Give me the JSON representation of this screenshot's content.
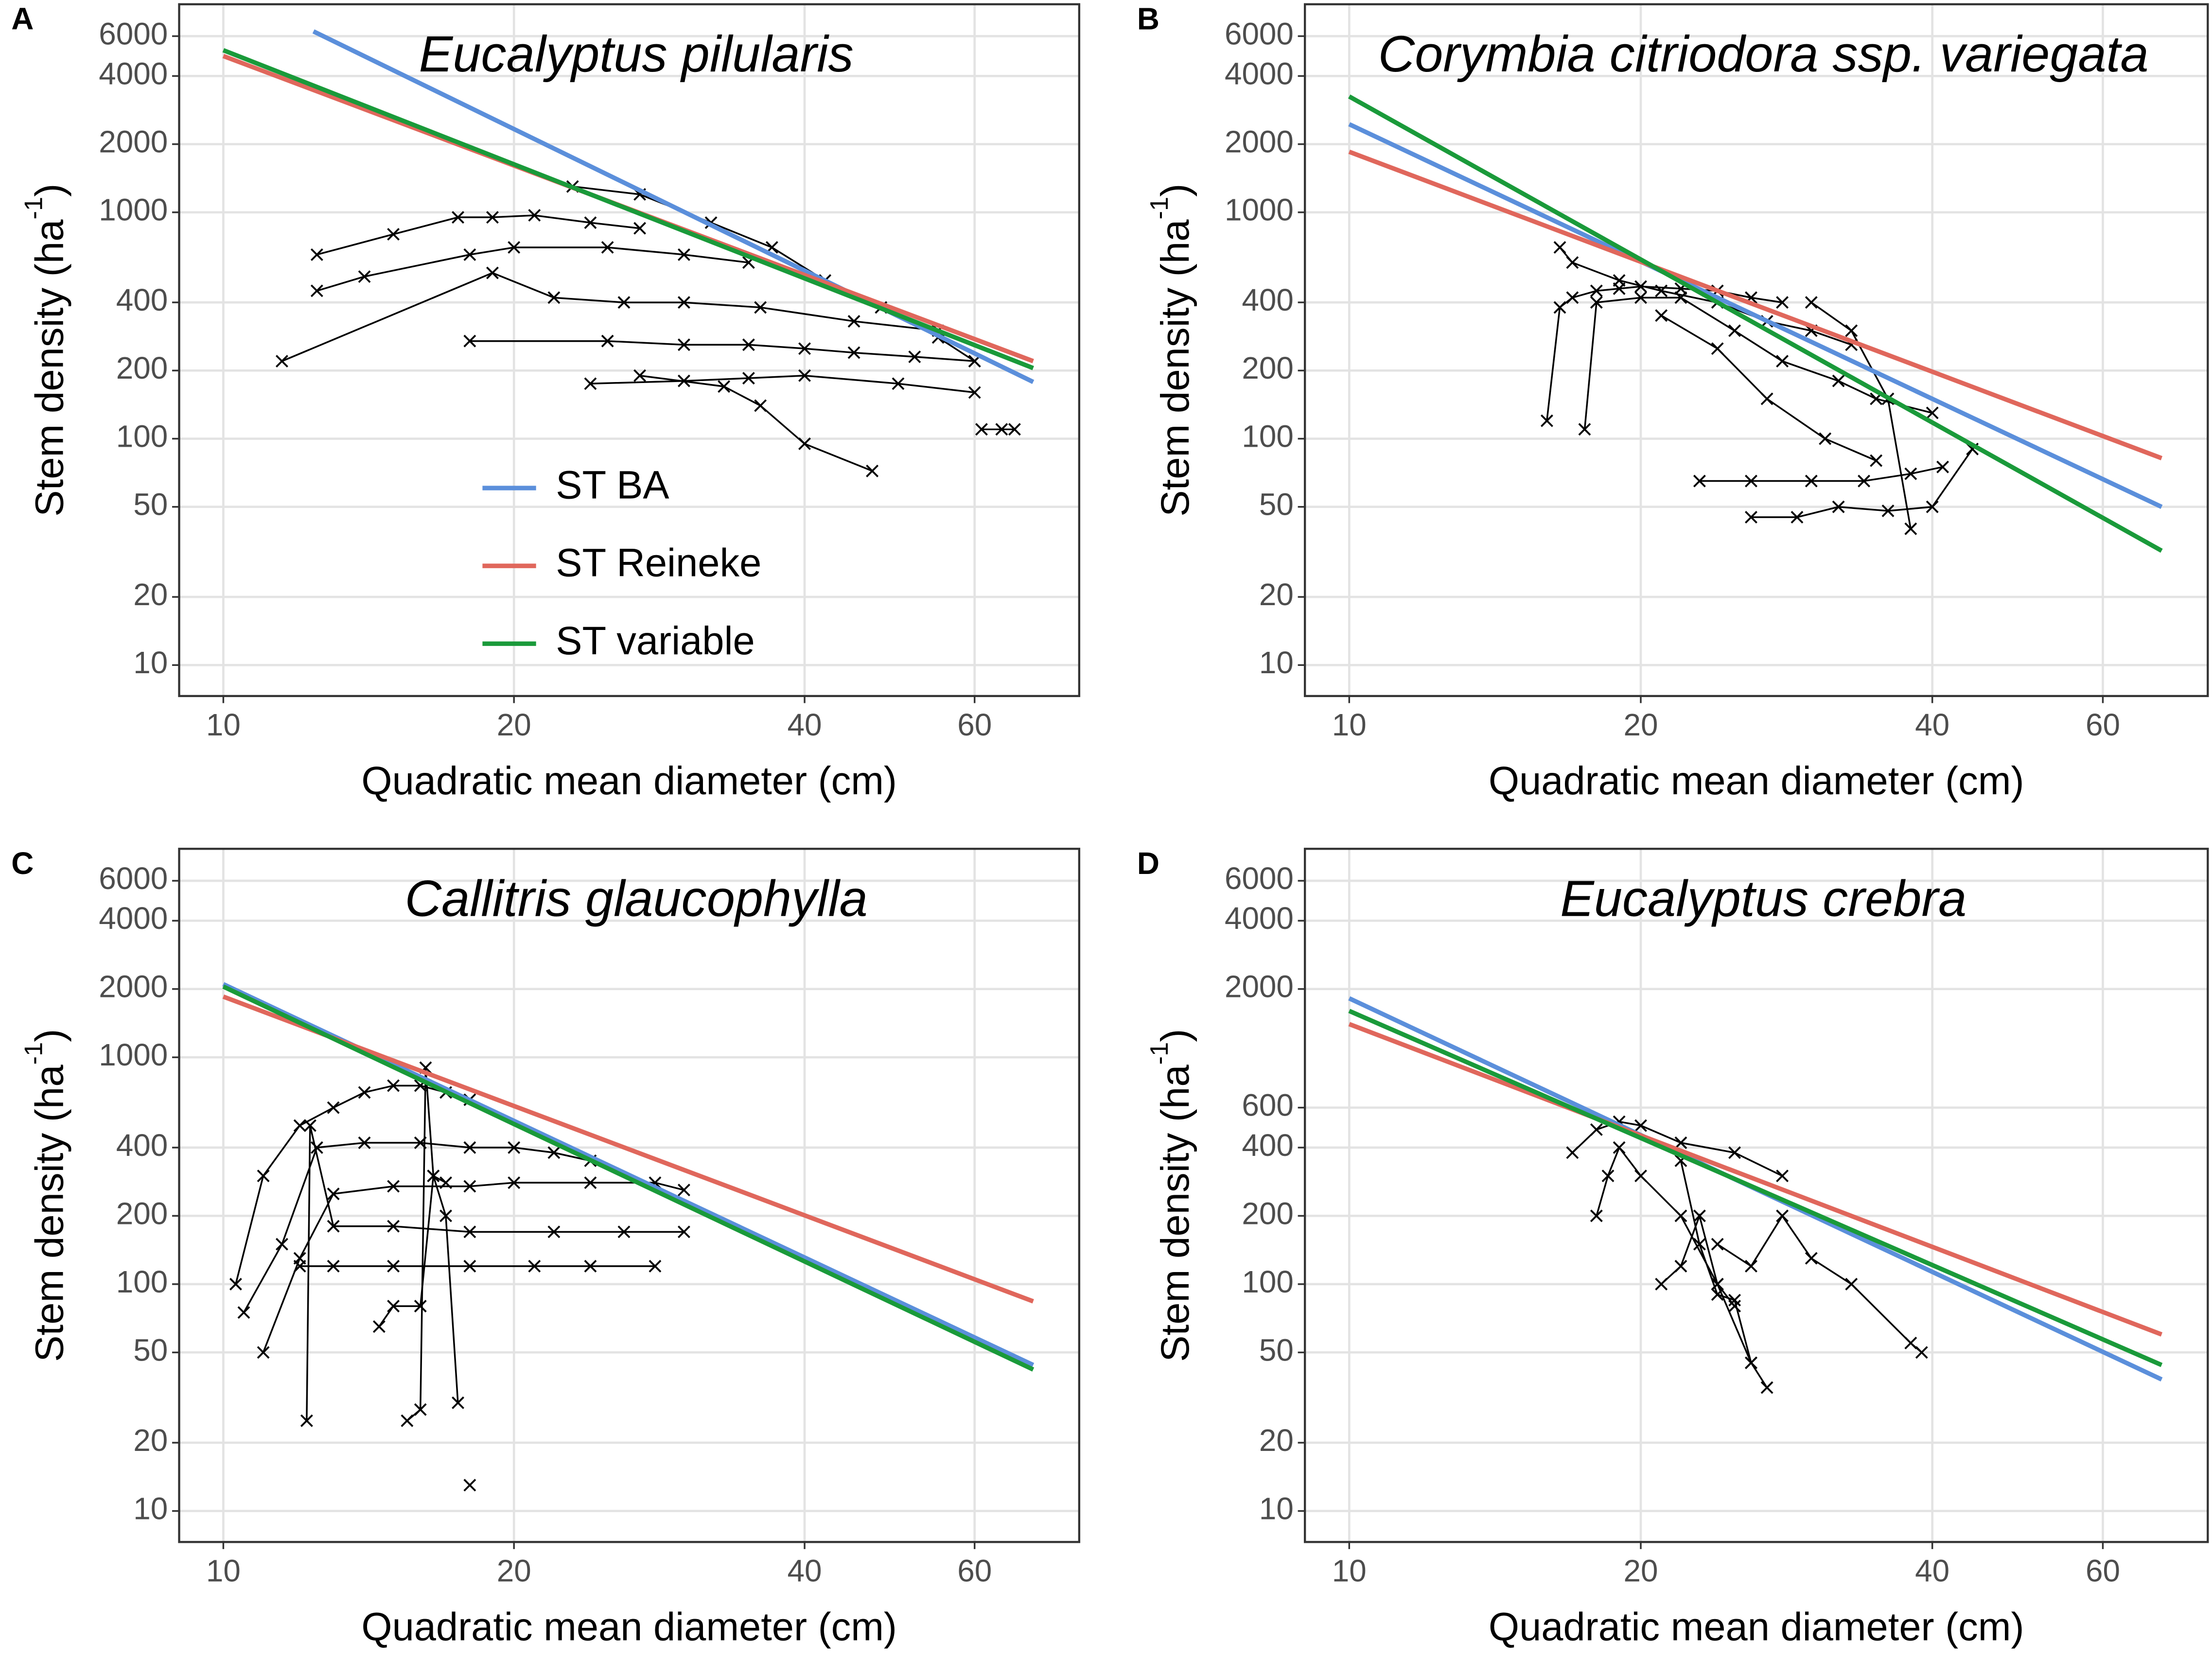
{
  "chart_data": [
    {
      "type": "line",
      "panel_label": "A",
      "title": "Eucalyptus pilularis",
      "xlabel": "Quadratic mean diameter (cm)",
      "ylabel": {
        "text": "Stem density (ha",
        "sup": "-1",
        "close": ")"
      },
      "log_x": true,
      "log_y": true,
      "grid": true,
      "legend": "center-left",
      "xlim": [
        9,
        77
      ],
      "ylim": [
        7.3,
        8300
      ],
      "xticks": [
        10,
        20,
        40,
        60
      ],
      "yticks": [
        10,
        20,
        50,
        100,
        200,
        400,
        1000,
        2000,
        4000,
        6000
      ],
      "series": [
        {
          "name": "ST BA",
          "color": "#5b8fdb",
          "x": [
            12.4,
            69
          ],
          "values": [
            6300,
            178
          ]
        },
        {
          "name": "ST Reineke",
          "color": "#e0675c",
          "x": [
            10,
            69
          ],
          "values": [
            4900,
            220
          ]
        },
        {
          "name": "ST variable",
          "color": "#1a9a3a",
          "x": [
            10,
            69
          ],
          "values": [
            5200,
            205
          ]
        }
      ],
      "observed": [
        {
          "x": [
            12.5,
            15,
            17.5,
            19,
            21,
            24,
            27
          ],
          "values": [
            650,
            800,
            950,
            950,
            970,
            900,
            850
          ]
        },
        {
          "x": [
            12.5,
            14,
            18,
            20,
            25,
            30,
            35
          ],
          "values": [
            450,
            520,
            650,
            700,
            700,
            650,
            600
          ]
        },
        {
          "x": [
            11.5,
            19,
            22,
            26,
            30,
            36,
            45,
            55
          ],
          "values": [
            220,
            540,
            420,
            400,
            400,
            380,
            330,
            300
          ]
        },
        {
          "x": [
            18,
            25,
            30,
            35,
            40,
            45,
            52,
            60
          ],
          "values": [
            270,
            270,
            260,
            260,
            250,
            240,
            230,
            220
          ]
        },
        {
          "x": [
            24,
            30,
            35,
            40,
            50,
            60
          ],
          "values": [
            175,
            180,
            185,
            190,
            175,
            160
          ]
        },
        {
          "x": [
            27,
            33,
            36,
            40,
            47
          ],
          "values": [
            190,
            170,
            140,
            95,
            72
          ]
        },
        {
          "x": [
            23,
            27,
            32,
            37,
            42,
            48,
            55,
            60
          ],
          "values": [
            1300,
            1200,
            900,
            700,
            500,
            380,
            280,
            220
          ]
        },
        {
          "x": [
            61,
            64,
            66
          ],
          "values": [
            110,
            110,
            110
          ]
        }
      ]
    },
    {
      "type": "line",
      "panel_label": "B",
      "title": "Corymbia citriodora ssp. variegata",
      "xlabel": "Quadratic mean diameter (cm)",
      "ylabel": {
        "text": "Stem density (ha",
        "sup": "-1",
        "close": ")"
      },
      "log_x": true,
      "log_y": true,
      "grid": true,
      "xlim": [
        9,
        77
      ],
      "ylim": [
        7.3,
        8300
      ],
      "xticks": [
        10,
        20,
        40,
        60
      ],
      "yticks": [
        10,
        20,
        50,
        100,
        200,
        400,
        1000,
        2000,
        4000,
        6000
      ],
      "series": [
        {
          "color": "#5b8fdb",
          "x": [
            10,
            69
          ],
          "values": [
            2450,
            50
          ]
        },
        {
          "color": "#e0675c",
          "x": [
            10,
            69
          ],
          "values": [
            1850,
            82
          ]
        },
        {
          "color": "#1a9a3a",
          "x": [
            10,
            69
          ],
          "values": [
            3250,
            32
          ]
        }
      ],
      "observed": [
        {
          "x": [
            16,
            16.5,
            17,
            18,
            19,
            20,
            22,
            24,
            26,
            28
          ],
          "values": [
            120,
            380,
            420,
            450,
            460,
            470,
            460,
            450,
            420,
            400
          ]
        },
        {
          "x": [
            17.5,
            18,
            20,
            22,
            25,
            28,
            32,
            35,
            40
          ],
          "values": [
            110,
            400,
            420,
            420,
            300,
            220,
            180,
            150,
            130
          ]
        },
        {
          "x": [
            16.5,
            17,
            19,
            21,
            24,
            27,
            30,
            33
          ],
          "values": [
            700,
            600,
            500,
            450,
            400,
            330,
            300,
            260
          ]
        },
        {
          "x": [
            23,
            26,
            30,
            34,
            38,
            41
          ],
          "values": [
            65,
            65,
            65,
            65,
            70,
            75
          ]
        },
        {
          "x": [
            26,
            29,
            32,
            36,
            40,
            44
          ],
          "values": [
            45,
            45,
            50,
            48,
            50,
            90
          ]
        },
        {
          "x": [
            21,
            24,
            27,
            31,
            35
          ],
          "values": [
            350,
            250,
            150,
            100,
            80
          ]
        },
        {
          "x": [
            30,
            33,
            36,
            38
          ],
          "values": [
            400,
            300,
            150,
            40
          ]
        }
      ]
    },
    {
      "type": "line",
      "panel_label": "C",
      "title": "Callitris glaucophylla",
      "xlabel": "Quadratic mean diameter (cm)",
      "ylabel": {
        "text": "Stem density (ha",
        "sup": "-1",
        "close": ")"
      },
      "log_x": true,
      "log_y": true,
      "grid": true,
      "xlim": [
        9,
        77
      ],
      "ylim": [
        7.3,
        8300
      ],
      "xticks": [
        10,
        20,
        40,
        60
      ],
      "yticks": [
        10,
        20,
        50,
        100,
        200,
        400,
        1000,
        2000,
        4000,
        6000
      ],
      "series": [
        {
          "color": "#5b8fdb",
          "x": [
            10,
            69
          ],
          "values": [
            2100,
            44
          ]
        },
        {
          "color": "#e0675c",
          "x": [
            10,
            69
          ],
          "values": [
            1850,
            84
          ]
        },
        {
          "color": "#1a9a3a",
          "x": [
            10,
            69
          ],
          "values": [
            2050,
            42
          ]
        }
      ],
      "observed": [
        {
          "x": [
            10.3,
            11,
            12,
            13,
            14,
            15,
            16,
            17,
            18
          ],
          "values": [
            100,
            300,
            500,
            600,
            700,
            750,
            750,
            700,
            650
          ]
        },
        {
          "x": [
            10.5,
            11.5,
            12.5,
            14,
            16,
            18,
            20,
            22,
            24
          ],
          "values": [
            75,
            150,
            400,
            420,
            420,
            400,
            400,
            380,
            350
          ]
        },
        {
          "x": [
            11,
            12,
            13,
            15,
            18,
            20,
            24,
            28,
            30
          ],
          "values": [
            50,
            130,
            250,
            270,
            270,
            280,
            280,
            280,
            260
          ]
        },
        {
          "x": [
            12.2,
            12.3,
            13,
            15,
            18,
            22,
            26,
            30
          ],
          "values": [
            25,
            500,
            180,
            180,
            170,
            170,
            170,
            170
          ]
        },
        {
          "x": [
            12,
            13,
            15,
            18,
            21,
            24,
            28
          ],
          "values": [
            120,
            120,
            120,
            120,
            120,
            120,
            120
          ]
        },
        {
          "x": [
            14.5,
            15,
            16,
            16.5,
            17
          ],
          "values": [
            65,
            80,
            80,
            300,
            280
          ]
        },
        {
          "x": [
            15.5,
            16,
            16.2,
            16.5,
            17,
            17.5
          ],
          "values": [
            25,
            28,
            900,
            300,
            200,
            30
          ]
        },
        {
          "x": [
            18
          ],
          "values": [
            13
          ]
        }
      ]
    },
    {
      "type": "line",
      "panel_label": "D",
      "title": "Eucalyptus crebra",
      "xlabel": "Quadratic mean diameter (cm)",
      "ylabel": {
        "text": "Stem density (ha",
        "sup": "-1",
        "close": ")"
      },
      "log_x": true,
      "log_y": true,
      "grid": true,
      "xlim": [
        9,
        77
      ],
      "ylim": [
        7.3,
        8300
      ],
      "xticks": [
        10,
        20,
        40,
        60
      ],
      "yticks": [
        10,
        20,
        50,
        100,
        200,
        400,
        600,
        2000,
        4000,
        6000
      ],
      "series": [
        {
          "color": "#5b8fdb",
          "x": [
            10,
            69
          ],
          "values": [
            1820,
            38
          ]
        },
        {
          "color": "#e0675c",
          "x": [
            10,
            69
          ],
          "values": [
            1400,
            60
          ]
        },
        {
          "color": "#1a9a3a",
          "x": [
            10,
            69
          ],
          "values": [
            1600,
            44
          ]
        }
      ],
      "observed": [
        {
          "x": [
            17,
            18,
            19,
            20,
            22,
            25,
            28
          ],
          "values": [
            380,
            480,
            520,
            500,
            420,
            380,
            300
          ]
        },
        {
          "x": [
            18,
            18.5,
            19,
            20,
            22,
            24,
            26
          ],
          "values": [
            200,
            300,
            400,
            300,
            200,
            100,
            45
          ]
        },
        {
          "x": [
            22,
            23,
            24,
            25,
            26,
            27
          ],
          "values": [
            350,
            150,
            90,
            85,
            45,
            35
          ]
        },
        {
          "x": [
            24,
            26,
            28,
            30,
            33,
            38,
            39
          ],
          "values": [
            150,
            120,
            200,
            130,
            100,
            55,
            50
          ]
        },
        {
          "x": [
            21,
            22,
            23,
            24,
            25
          ],
          "values": [
            100,
            120,
            200,
            100,
            80
          ]
        }
      ]
    }
  ]
}
